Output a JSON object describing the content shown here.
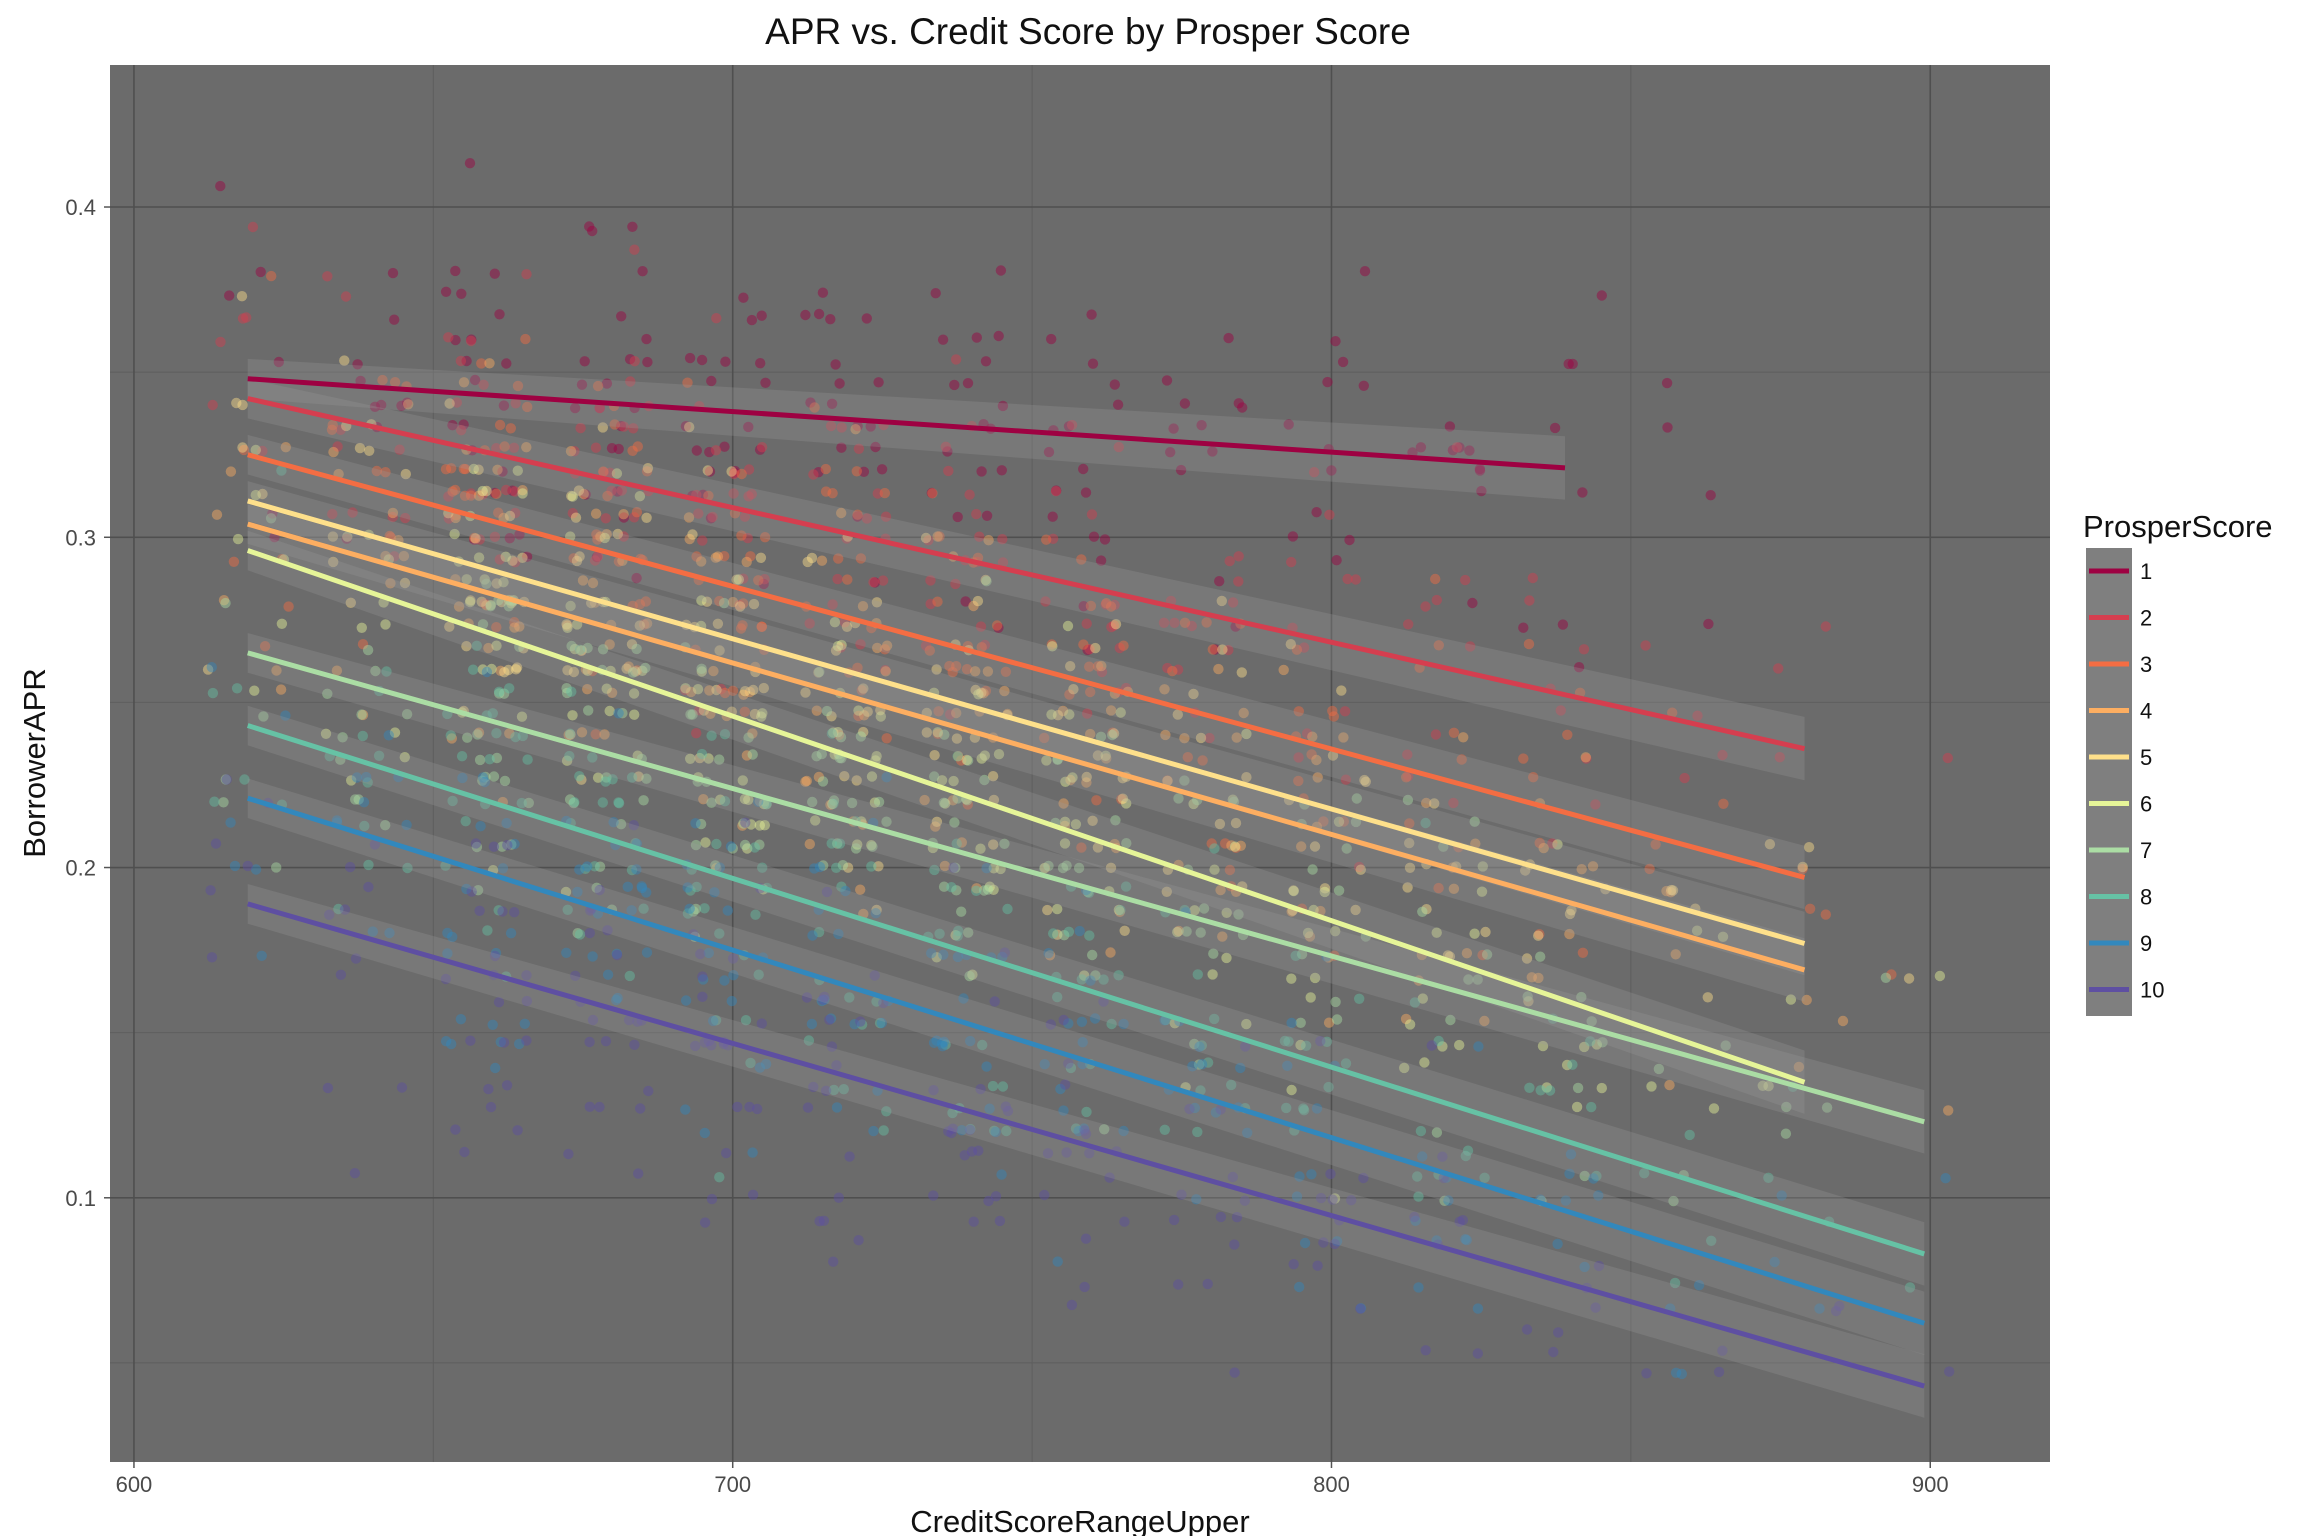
{
  "chart_data": {
    "type": "scatter",
    "title": "APR vs. Credit Score by Prosper Score",
    "xlabel": "CreditScoreRangeUpper",
    "ylabel": "BorrowerAPR",
    "xlim": [
      596,
      920
    ],
    "ylim": [
      0.02,
      0.443
    ],
    "x_ticks": [
      600,
      700,
      800,
      900
    ],
    "y_ticks": [
      0.1,
      0.2,
      0.3,
      0.4
    ],
    "x_tick_labels": [
      "600",
      "700",
      "800",
      "900"
    ],
    "y_tick_labels": [
      "0.1",
      "0.2",
      "0.3",
      "0.4"
    ],
    "grid": true,
    "background": "#6b6b6b",
    "legend": {
      "title": "ProsperScore",
      "placement": "right"
    },
    "score_bins_x": [
      619,
      639,
      659,
      679,
      699,
      719,
      739,
      759,
      779,
      799,
      819,
      839,
      859,
      879,
      899
    ],
    "series": [
      {
        "name": "1",
        "color": "#9e0142",
        "x": [
          619,
          839
        ],
        "y": [
          0.348,
          0.321
        ]
      },
      {
        "name": "2",
        "color": "#d53e4f",
        "x": [
          619,
          879
        ],
        "y": [
          0.342,
          0.236
        ]
      },
      {
        "name": "3",
        "color": "#f46d43",
        "x": [
          619,
          879
        ],
        "y": [
          0.325,
          0.197
        ]
      },
      {
        "name": "4",
        "color": "#fdae61",
        "x": [
          619,
          879
        ],
        "y": [
          0.304,
          0.169
        ]
      },
      {
        "name": "5",
        "color": "#fee08b",
        "x": [
          619,
          879
        ],
        "y": [
          0.311,
          0.177
        ]
      },
      {
        "name": "6",
        "color": "#e6f598",
        "x": [
          619,
          879
        ],
        "y": [
          0.296,
          0.135
        ]
      },
      {
        "name": "7",
        "color": "#abdda4",
        "x": [
          619,
          899
        ],
        "y": [
          0.265,
          0.123
        ]
      },
      {
        "name": "8",
        "color": "#66c2a5",
        "x": [
          619,
          899
        ],
        "y": [
          0.243,
          0.083
        ]
      },
      {
        "name": "9",
        "color": "#3288bd",
        "x": [
          619,
          899
        ],
        "y": [
          0.221,
          0.062
        ]
      },
      {
        "name": "10",
        "color": "#5e4fa2",
        "x": [
          619,
          899
        ],
        "y": [
          0.189,
          0.043
        ]
      }
    ]
  }
}
